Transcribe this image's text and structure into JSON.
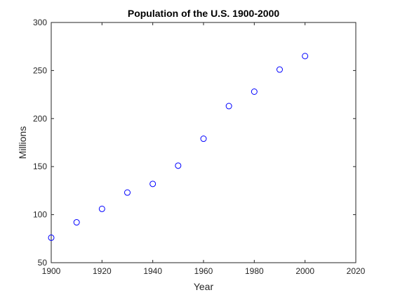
{
  "chart_data": {
    "type": "scatter",
    "title": "Population of the U.S. 1900-2000",
    "xlabel": "Year",
    "ylabel": "Millions",
    "xlim": [
      1900,
      2020
    ],
    "ylim": [
      50,
      300
    ],
    "xticks": [
      1900,
      1920,
      1940,
      1960,
      1980,
      2000,
      2020
    ],
    "yticks": [
      50,
      100,
      150,
      200,
      250,
      300
    ],
    "grid": false,
    "marker": "circle-open",
    "series": [
      {
        "color": "#0000ff",
        "x": [
          1900,
          1910,
          1920,
          1930,
          1940,
          1950,
          1960,
          1970,
          1980,
          1990,
          2000
        ],
        "y": [
          76,
          92,
          106,
          123,
          132,
          151,
          179,
          213,
          228,
          251,
          265
        ]
      }
    ]
  }
}
